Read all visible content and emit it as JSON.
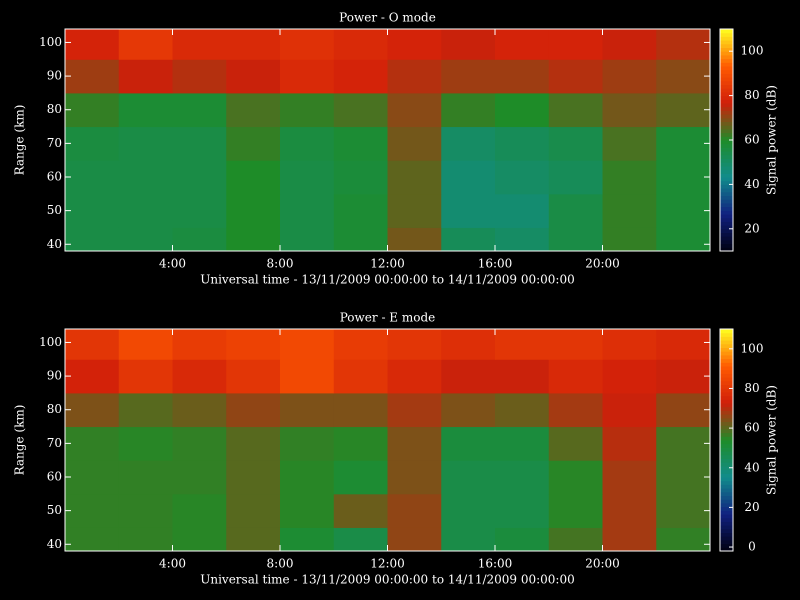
{
  "chart_data": [
    {
      "type": "heatmap",
      "title": "Power - O mode",
      "xlabel": "Universal time - 13/11/2009 00:00:00 to 14/11/2009 00:00:00",
      "ylabel": "Range (km)",
      "colorbar_label": "Signal power (dB)",
      "xlim": [
        0,
        24
      ],
      "xticks": [
        {
          "value": 4,
          "label": "4:00"
        },
        {
          "value": 8,
          "label": "8:00"
        },
        {
          "value": 12,
          "label": "12:00"
        },
        {
          "value": 16,
          "label": "16:00"
        },
        {
          "value": 20,
          "label": "20:00"
        }
      ],
      "ylim": [
        38,
        104
      ],
      "yticks": [
        40,
        50,
        60,
        70,
        80,
        90,
        100
      ],
      "x_bins": [
        0,
        2,
        4,
        6,
        8,
        10,
        12,
        14,
        16,
        18,
        20,
        22,
        24
      ],
      "y_bins": [
        38,
        45,
        55,
        65,
        75,
        85,
        95,
        104
      ],
      "values": [
        [
          55,
          55,
          56,
          60,
          55,
          58,
          68,
          52,
          50,
          55,
          62,
          58
        ],
        [
          55,
          55,
          55,
          60,
          55,
          58,
          66,
          48,
          48,
          55,
          62,
          58
        ],
        [
          55,
          55,
          55,
          60,
          55,
          57,
          66,
          48,
          50,
          52,
          62,
          58
        ],
        [
          56,
          55,
          55,
          62,
          56,
          58,
          68,
          50,
          52,
          54,
          64,
          58
        ],
        [
          62,
          58,
          58,
          64,
          62,
          64,
          70,
          62,
          60,
          64,
          68,
          66
        ],
        [
          72,
          76,
          74,
          76,
          80,
          78,
          74,
          72,
          72,
          74,
          72,
          70
        ],
        [
          78,
          84,
          80,
          80,
          82,
          80,
          78,
          76,
          78,
          78,
          76,
          74
        ]
      ],
      "zlim": [
        10,
        110
      ],
      "zticks": [
        20,
        40,
        60,
        80,
        100
      ],
      "colors": [
        "#000010",
        "#102080",
        "#108c8c",
        "#1e8c28",
        "#d01e0a",
        "#ff5a00",
        "#ffff20"
      ]
    },
    {
      "type": "heatmap",
      "title": "Power - E mode",
      "xlabel": "Universal time - 13/11/2009 00:00:00 to 14/11/2009 00:00:00",
      "ylabel": "Range (km)",
      "colorbar_label": "Signal power (dB)",
      "xlim": [
        0,
        24
      ],
      "xticks": [
        {
          "value": 4,
          "label": "4:00"
        },
        {
          "value": 8,
          "label": "8:00"
        },
        {
          "value": 12,
          "label": "12:00"
        },
        {
          "value": 16,
          "label": "16:00"
        },
        {
          "value": 20,
          "label": "20:00"
        }
      ],
      "ylim": [
        38,
        104
      ],
      "yticks": [
        40,
        50,
        60,
        70,
        80,
        90,
        100
      ],
      "x_bins": [
        0,
        2,
        4,
        6,
        8,
        10,
        12,
        14,
        16,
        18,
        20,
        22,
        24
      ],
      "y_bins": [
        38,
        45,
        55,
        65,
        75,
        85,
        95,
        104
      ],
      "values": [
        [
          56,
          56,
          55,
          60,
          52,
          48,
          66,
          48,
          50,
          58,
          68,
          56
        ],
        [
          56,
          56,
          55,
          60,
          55,
          62,
          66,
          48,
          48,
          55,
          68,
          58
        ],
        [
          56,
          56,
          56,
          60,
          55,
          52,
          64,
          48,
          48,
          55,
          68,
          58
        ],
        [
          56,
          55,
          56,
          60,
          56,
          55,
          64,
          50,
          50,
          60,
          70,
          58
        ],
        [
          64,
          60,
          62,
          66,
          64,
          64,
          68,
          64,
          62,
          68,
          72,
          66
        ],
        [
          74,
          80,
          76,
          80,
          86,
          80,
          76,
          72,
          72,
          76,
          74,
          72
        ],
        [
          80,
          86,
          82,
          84,
          86,
          82,
          80,
          78,
          80,
          80,
          78,
          76
        ]
      ],
      "zlim": [
        -2,
        110
      ],
      "zticks": [
        0,
        20,
        40,
        60,
        80,
        100
      ],
      "colors": [
        "#000010",
        "#102080",
        "#108c8c",
        "#1e8c28",
        "#d01e0a",
        "#ff5a00",
        "#ffff20"
      ]
    }
  ]
}
